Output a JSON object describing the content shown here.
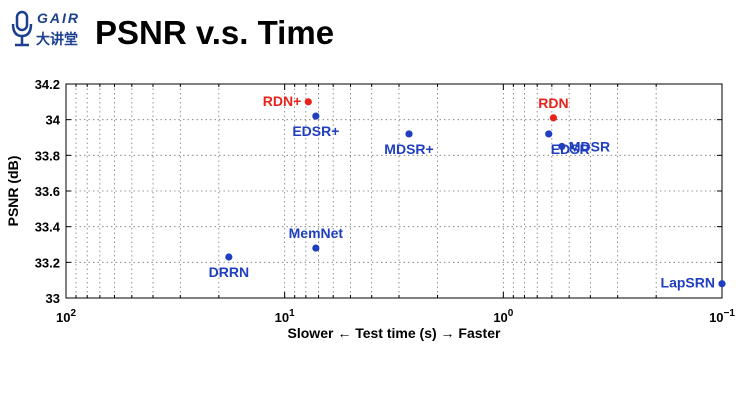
{
  "logo": {
    "brand": "GAIR",
    "subtitle": "大讲堂",
    "accent": "#1c3f8f"
  },
  "slide_title": "PSNR v.s. Time",
  "chart_data": {
    "type": "scatter",
    "x_scale": "log",
    "x_reversed": true,
    "xlim": [
      100,
      0.1
    ],
    "ylim": [
      33,
      34.2
    ],
    "grid": true,
    "xlabel_left": "Slower",
    "xlabel_mid": "Test time (s)",
    "xlabel_right": "Faster",
    "ylabel": "PSNR (dB)",
    "x_ticks": [
      {
        "value": 100,
        "base": "10",
        "exp": "2"
      },
      {
        "value": 10,
        "base": "10",
        "exp": "1"
      },
      {
        "value": 1,
        "base": "10",
        "exp": "0"
      },
      {
        "value": 0.1,
        "base": "10",
        "exp": "−1"
      }
    ],
    "y_ticks": [
      {
        "value": 33,
        "label": "33"
      },
      {
        "value": 33.2,
        "label": "33.2"
      },
      {
        "value": 33.4,
        "label": "33.4"
      },
      {
        "value": 33.6,
        "label": "33.6"
      },
      {
        "value": 33.8,
        "label": "33.8"
      },
      {
        "value": 34,
        "label": "34"
      },
      {
        "value": 34.2,
        "label": "34.2"
      }
    ],
    "colors": {
      "red": "#e8231c",
      "blue": "#1f3fbf"
    },
    "points": [
      {
        "name": "RDN+",
        "x": 7.8,
        "y": 34.1,
        "color": "red",
        "label_pos": "left"
      },
      {
        "name": "EDSR+",
        "x": 7.2,
        "y": 34.02,
        "color": "blue",
        "label_pos": "below"
      },
      {
        "name": "MDSR+",
        "x": 2.7,
        "y": 33.92,
        "color": "blue",
        "label_pos": "below"
      },
      {
        "name": "RDN",
        "x": 0.59,
        "y": 34.01,
        "color": "red",
        "label_pos": "above"
      },
      {
        "name": "EDSR",
        "x": 0.62,
        "y": 33.92,
        "color": "blue",
        "label_pos": "below-right"
      },
      {
        "name": "MDSR",
        "x": 0.54,
        "y": 33.85,
        "color": "blue",
        "label_pos": "right"
      },
      {
        "name": "MemNet",
        "x": 7.2,
        "y": 33.28,
        "color": "blue",
        "label_pos": "above"
      },
      {
        "name": "DRRN",
        "x": 18,
        "y": 33.23,
        "color": "blue",
        "label_pos": "below"
      },
      {
        "name": "LapSRN",
        "x": 0.1,
        "y": 33.08,
        "color": "blue",
        "label_pos": "left"
      }
    ]
  }
}
